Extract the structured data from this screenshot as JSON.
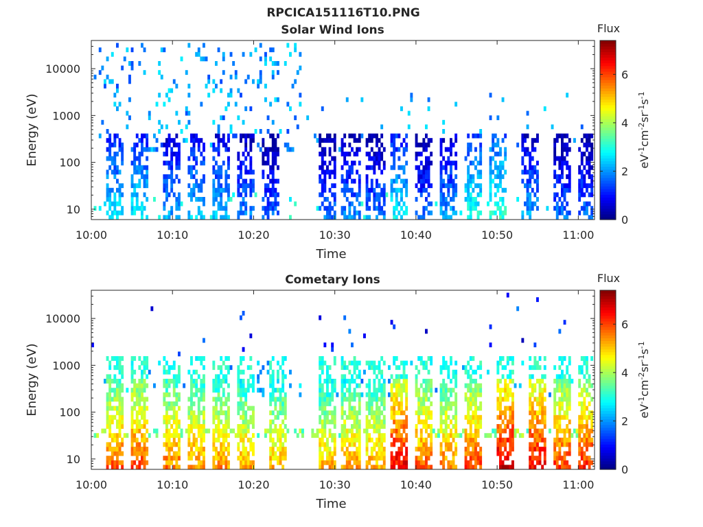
{
  "figure_title": "RPCICA151116T10.PNG",
  "chart_data": [
    {
      "type": "heatmap",
      "title": "Solar Wind Ions",
      "xlabel": "Time",
      "ylabel": "Energy (eV)",
      "y_scale": "log",
      "ylim": [
        6,
        40000
      ],
      "xlim": [
        "10:00",
        "11:02"
      ],
      "x_ticks": [
        "10:00",
        "10:10",
        "10:20",
        "10:30",
        "10:40",
        "10:50",
        "11:00"
      ],
      "y_ticks": [
        "10",
        "100",
        "1000",
        "10000"
      ],
      "y_tick_values": [
        10,
        100,
        1000,
        10000
      ],
      "colorbar": {
        "title": "Flux",
        "unit_parts": [
          "eV",
          "-1",
          "cm",
          "-2",
          "sr",
          "-1",
          "s",
          "-1"
        ],
        "range": [
          0,
          7.4
        ],
        "ticks": [
          "0",
          "2",
          "4",
          "6"
        ],
        "tick_values": [
          0,
          2,
          4,
          6
        ],
        "colormap": "jet"
      },
      "bursts": [
        {
          "t": "10:03",
          "flux": 2.5
        },
        {
          "t": "10:06",
          "flux": 2.6
        },
        {
          "t": "10:10",
          "flux": 2.0
        },
        {
          "t": "10:13",
          "flux": 2.3
        },
        {
          "t": "10:16",
          "flux": 2.2
        },
        {
          "t": "10:19",
          "flux": 1.8
        },
        {
          "t": "10:22",
          "flux": 1.5
        },
        {
          "t": "10:29",
          "flux": 1.6
        },
        {
          "t": "10:32",
          "flux": 1.8
        },
        {
          "t": "10:35",
          "flux": 1.7
        },
        {
          "t": "10:38",
          "flux": 2.6
        },
        {
          "t": "10:41",
          "flux": 1.6
        },
        {
          "t": "10:44",
          "flux": 2.0
        },
        {
          "t": "10:47",
          "flux": 2.8
        },
        {
          "t": "10:50",
          "flux": 3.0
        },
        {
          "t": "10:54",
          "flux": 2.0
        },
        {
          "t": "10:58",
          "flux": 1.6
        },
        {
          "t": "11:01",
          "flux": 1.6
        }
      ]
    },
    {
      "type": "heatmap",
      "title": "Cometary Ions",
      "xlabel": "Time",
      "ylabel": "Energy (eV)",
      "y_scale": "log",
      "ylim": [
        6,
        40000
      ],
      "xlim": [
        "10:00",
        "11:02"
      ],
      "x_ticks": [
        "10:00",
        "10:10",
        "10:20",
        "10:30",
        "10:40",
        "10:50",
        "11:00"
      ],
      "y_ticks": [
        "10",
        "100",
        "1000",
        "10000"
      ],
      "y_tick_values": [
        10,
        100,
        1000,
        10000
      ],
      "colorbar": {
        "title": "Flux",
        "unit_parts": [
          "eV",
          "-1",
          "cm",
          "-2",
          "sr",
          "-1",
          "s",
          "-1"
        ],
        "range": [
          0,
          7.4
        ],
        "ticks": [
          "0",
          "2",
          "4",
          "6"
        ],
        "tick_values": [
          0,
          2,
          4,
          6
        ],
        "colormap": "jet"
      },
      "bursts": [
        {
          "t": "10:03",
          "flux": 5.2
        },
        {
          "t": "10:06",
          "flux": 5.4
        },
        {
          "t": "10:10",
          "flux": 5.0
        },
        {
          "t": "10:13",
          "flux": 4.9
        },
        {
          "t": "10:16",
          "flux": 4.8
        },
        {
          "t": "10:19",
          "flux": 4.7
        },
        {
          "t": "10:23",
          "flux": 4.6
        },
        {
          "t": "10:29",
          "flux": 4.6
        },
        {
          "t": "10:32",
          "flux": 4.8
        },
        {
          "t": "10:35",
          "flux": 4.7
        },
        {
          "t": "10:38",
          "flux": 6.0
        },
        {
          "t": "10:41",
          "flux": 5.2
        },
        {
          "t": "10:44",
          "flux": 5.0
        },
        {
          "t": "10:47",
          "flux": 5.4
        },
        {
          "t": "10:51",
          "flux": 6.2
        },
        {
          "t": "10:55",
          "flux": 6.0
        },
        {
          "t": "10:58",
          "flux": 5.5
        },
        {
          "t": "11:01",
          "flux": 5.6
        }
      ]
    }
  ]
}
